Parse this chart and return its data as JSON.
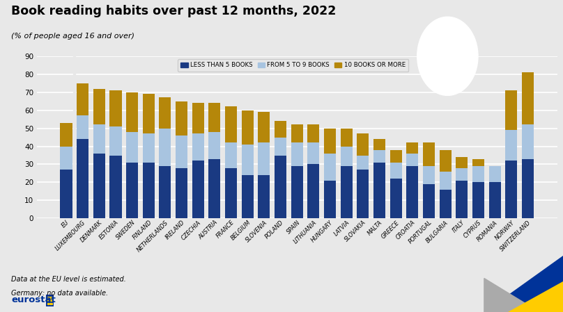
{
  "title": "Book reading habits over past 12 months, 2022",
  "subtitle": "(% of people aged 16 and over)",
  "footnote1": "Data at the EU level is estimated.",
  "footnote2": "Germany: no data available.",
  "ylim": [
    0,
    90
  ],
  "yticks": [
    0,
    10,
    20,
    30,
    40,
    50,
    60,
    70,
    80,
    90
  ],
  "colors": {
    "less_than_5": "#1a3a82",
    "from_5_to_9": "#a8c4e0",
    "10_or_more": "#b5870a",
    "background": "#e8e8e8",
    "plot_bg": "#e8e8e8"
  },
  "legend_labels": [
    "LESS THAN 5 BOOKS",
    "FROM 5 TO 9 BOOKS",
    "10 BOOKS OR MORE"
  ],
  "categories": [
    "EU",
    "LUXEMBOURG",
    "DENMARK",
    "ESTONIA",
    "SWEDEN",
    "FINLAND",
    "NETHERLANDS",
    "IRELAND",
    "CZECHIA",
    "AUSTRIA",
    "FRANCE",
    "BELGIUM",
    "SLOVENIA",
    "POLAND",
    "SPAIN",
    "LITHUANIA",
    "HUNGARY",
    "LATVIA",
    "SLOVAKIA",
    "MALTA",
    "GREECE",
    "CROATIA",
    "PORTUGAL",
    "BULGARIA",
    "ITALY",
    "CYPRUS",
    "ROMANIA",
    "NORWAY",
    "SWITZERLAND"
  ],
  "less_than_5": [
    27,
    44,
    36,
    35,
    31,
    31,
    29,
    28,
    32,
    33,
    28,
    24,
    24,
    35,
    29,
    30,
    21,
    29,
    27,
    31,
    22,
    29,
    19,
    16,
    21,
    20,
    20,
    32,
    33
  ],
  "from_5_to_9": [
    13,
    13,
    16,
    16,
    17,
    16,
    21,
    18,
    15,
    15,
    14,
    17,
    18,
    10,
    13,
    12,
    15,
    11,
    8,
    7,
    9,
    7,
    10,
    10,
    7,
    9,
    9,
    17,
    19
  ],
  "10_or_more": [
    13,
    18,
    20,
    20,
    22,
    22,
    17,
    19,
    17,
    16,
    20,
    19,
    17,
    9,
    10,
    10,
    14,
    10,
    12,
    6,
    7,
    6,
    13,
    12,
    6,
    4,
    0,
    22,
    29
  ]
}
